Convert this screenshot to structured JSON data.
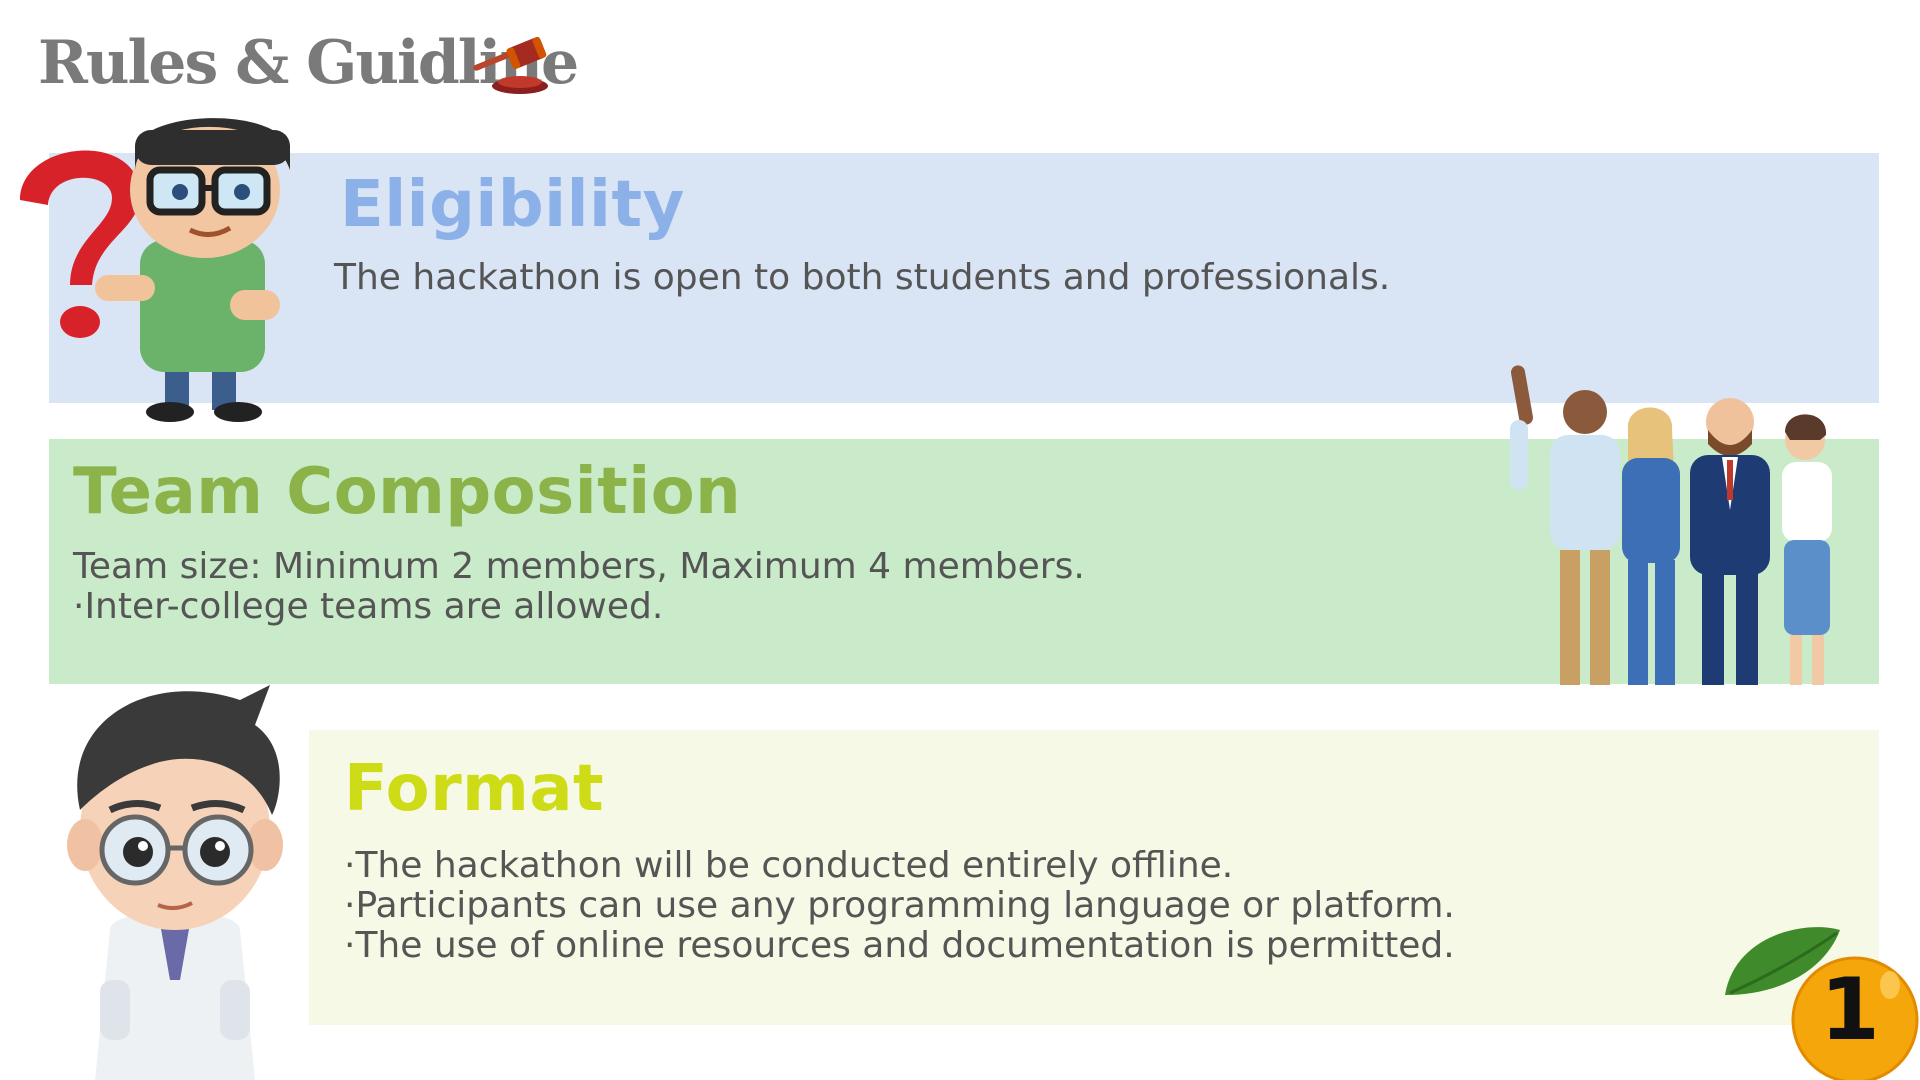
{
  "header": {
    "title": "Rules & Guidline",
    "icon": "gavel-icon"
  },
  "sections": {
    "eligibility": {
      "heading": "Eligibility",
      "text": "The hackathon is open to both students and professionals.",
      "background": "#d9e4f4",
      "heading_color": "#8cb0e8"
    },
    "team": {
      "heading": "Team Composition",
      "lines": [
        "Team size: Minimum 2 members, Maximum 4 members.",
        "·Inter-college teams are allowed."
      ],
      "background": "#c9ebca",
      "heading_color": "#8cb34a"
    },
    "format": {
      "heading": "Format",
      "lines": [
        "·The hackathon will be conducted entirely offline.",
        "·Participants can use any programming language or platform.",
        "·The use of online resources and documentation is permitted."
      ],
      "background": "#f6f9e5",
      "heading_color": "#cddc16"
    }
  },
  "illustrations": {
    "top_left": "cartoon-boy-with-question-mark",
    "right": "business-team-group",
    "bottom_left": "cartoon-doctor"
  },
  "badge": {
    "icon": "orange-fruit-icon",
    "page_number": "1"
  }
}
